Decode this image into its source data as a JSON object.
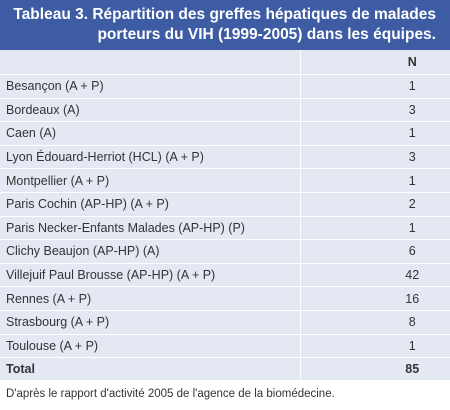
{
  "header": {
    "title": [
      "Tableau 3. Répartition des greffes hépatiques de malades",
      "porteurs du VIH (1999-2005) dans les équipes."
    ]
  },
  "table": {
    "columns": [
      "N"
    ],
    "rows": [
      [
        "Besançon (A + P)",
        1
      ],
      [
        "Bordeaux (A)",
        3
      ],
      [
        "Caen (A)",
        1
      ],
      [
        "Lyon Édouard-Herriot (HCL) (A + P)",
        3
      ],
      [
        "Montpellier (A + P)",
        1
      ],
      [
        "Paris Cochin (AP-HP) (A + P)",
        2
      ],
      [
        "Paris Necker-Enfants Malades (AP-HP) (P)",
        1
      ],
      [
        "Clichy Beaujon (AP-HP) (A)",
        6
      ],
      [
        "Villejuif Paul Brousse (AP-HP) (A + P)",
        42
      ],
      [
        "Rennes (A + P)",
        16
      ],
      [
        "Strasbourg (A + P)",
        8
      ],
      [
        "Toulouse (A + P)",
        1
      ]
    ],
    "total": [
      "Total",
      85
    ]
  },
  "footer": {
    "note": "D'après le rapport d'activité 2005 de l'agence de la biomédecine."
  }
}
